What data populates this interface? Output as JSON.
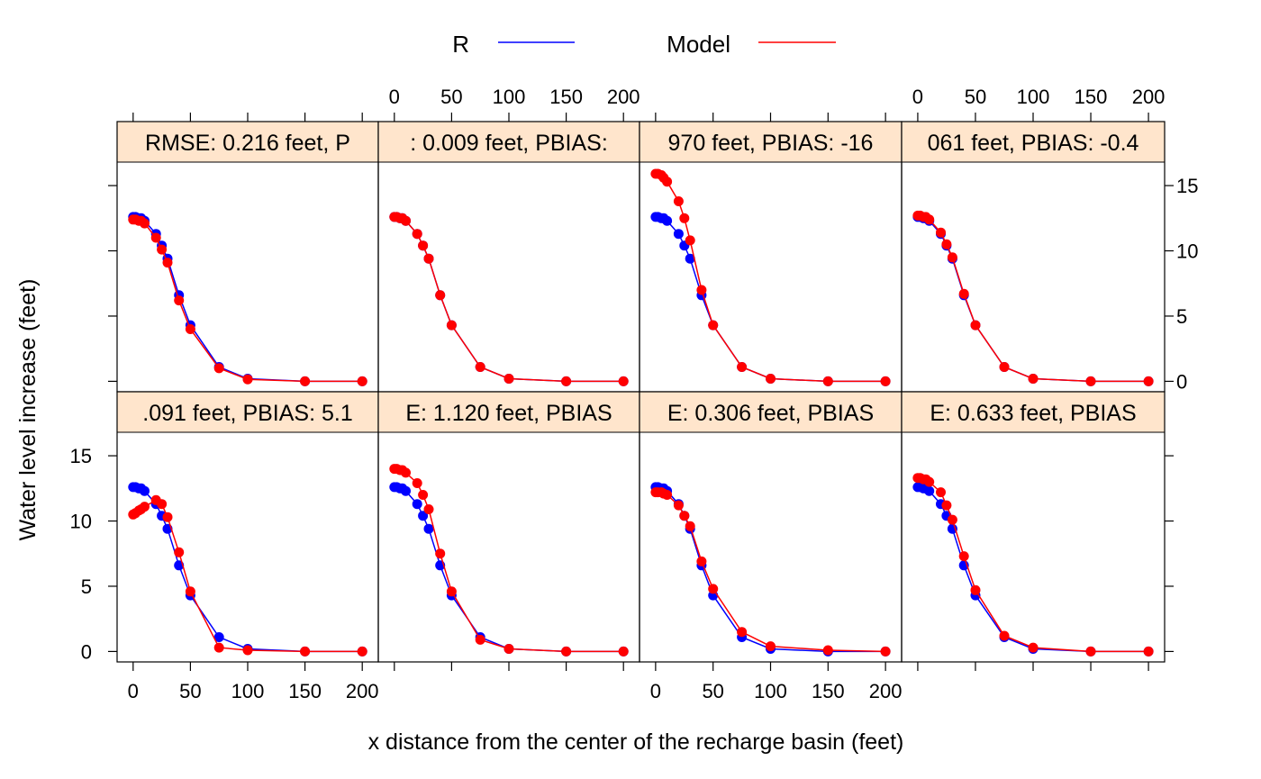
{
  "legend": {
    "items": [
      {
        "label": "R",
        "color": "#0000ff"
      },
      {
        "label": "Model",
        "color": "#ff0000"
      }
    ]
  },
  "axes": {
    "xlabel": "x distance from the center of the recharge basin (feet)",
    "ylabel": "Water level increase (feet)",
    "x_ticks": [
      0,
      50,
      100,
      150,
      200
    ],
    "y_ticks": [
      0,
      5,
      10,
      15
    ],
    "strip_color": "#ffe5cc"
  },
  "chart_data": {
    "type": "line",
    "layout": "2 rows x 4 columns trellis (lattice xyplot)",
    "xlim": [
      -14,
      214
    ],
    "ylim": [
      -0.8,
      16.8
    ],
    "x": [
      0,
      2,
      5,
      7,
      10,
      20,
      25,
      30,
      40,
      50,
      75,
      100,
      150,
      200
    ],
    "panels": [
      {
        "strip": "RMSE: 0.216 feet, P",
        "R": [
          12.6,
          12.6,
          12.5,
          12.5,
          12.3,
          11.3,
          10.4,
          9.4,
          6.6,
          4.3,
          1.1,
          0.2,
          0.0,
          0.0
        ],
        "Model": [
          12.4,
          12.4,
          12.3,
          12.3,
          12.1,
          11.0,
          10.1,
          9.1,
          6.2,
          4.0,
          1.0,
          0.15,
          0.0,
          0.0
        ]
      },
      {
        "strip": ": 0.009 feet, PBIAS:",
        "R": [
          12.6,
          12.6,
          12.5,
          12.5,
          12.3,
          11.3,
          10.4,
          9.4,
          6.6,
          4.3,
          1.1,
          0.2,
          0.0,
          0.0
        ],
        "Model": [
          12.6,
          12.6,
          12.5,
          12.5,
          12.3,
          11.3,
          10.4,
          9.4,
          6.6,
          4.3,
          1.1,
          0.2,
          0.0,
          0.0
        ]
      },
      {
        "strip": "970 feet, PBIAS: -16",
        "R": [
          12.6,
          12.6,
          12.5,
          12.5,
          12.3,
          11.3,
          10.4,
          9.4,
          6.6,
          4.3,
          1.1,
          0.2,
          0.0,
          0.0
        ],
        "Model": [
          15.9,
          15.9,
          15.8,
          15.6,
          15.3,
          13.8,
          12.5,
          10.8,
          7.0,
          4.3,
          1.1,
          0.2,
          0.0,
          0.0
        ]
      },
      {
        "strip": "061 feet, PBIAS: -0.4",
        "R": [
          12.6,
          12.6,
          12.5,
          12.5,
          12.3,
          11.3,
          10.4,
          9.4,
          6.6,
          4.3,
          1.1,
          0.2,
          0.0,
          0.0
        ],
        "Model": [
          12.7,
          12.7,
          12.6,
          12.6,
          12.4,
          11.4,
          10.5,
          9.5,
          6.7,
          4.3,
          1.1,
          0.2,
          0.0,
          0.0
        ]
      },
      {
        "strip": ".091 feet, PBIAS: 5.1",
        "R": [
          12.6,
          12.6,
          12.5,
          12.5,
          12.3,
          11.3,
          10.4,
          9.4,
          6.6,
          4.3,
          1.1,
          0.2,
          0.0,
          0.0
        ],
        "Model": [
          10.5,
          10.6,
          10.8,
          10.9,
          11.1,
          11.6,
          11.3,
          10.3,
          7.6,
          4.6,
          0.3,
          0.1,
          0.0,
          0.0
        ]
      },
      {
        "strip": "E: 1.120 feet, PBIAS",
        "R": [
          12.6,
          12.6,
          12.5,
          12.5,
          12.3,
          11.3,
          10.4,
          9.4,
          6.6,
          4.3,
          1.1,
          0.2,
          0.0,
          0.0
        ],
        "Model": [
          14.0,
          14.0,
          13.9,
          13.9,
          13.7,
          12.9,
          12.0,
          10.9,
          7.5,
          4.6,
          0.9,
          0.2,
          0.0,
          0.0
        ]
      },
      {
        "strip": "E: 0.306 feet, PBIAS",
        "R": [
          12.6,
          12.6,
          12.5,
          12.5,
          12.3,
          11.3,
          10.4,
          9.4,
          6.6,
          4.3,
          1.1,
          0.2,
          0.0,
          0.0
        ],
        "Model": [
          12.2,
          12.2,
          12.2,
          12.1,
          12.0,
          11.2,
          10.4,
          9.6,
          6.9,
          4.8,
          1.5,
          0.4,
          0.1,
          0.0
        ]
      },
      {
        "strip": "E: 0.633 feet, PBIAS",
        "R": [
          12.6,
          12.6,
          12.5,
          12.5,
          12.3,
          11.3,
          10.4,
          9.4,
          6.6,
          4.3,
          1.1,
          0.2,
          0.0,
          0.0
        ],
        "Model": [
          13.3,
          13.3,
          13.2,
          13.2,
          13.0,
          12.2,
          11.2,
          10.1,
          7.3,
          4.7,
          1.2,
          0.3,
          0.0,
          0.0
        ]
      }
    ]
  }
}
